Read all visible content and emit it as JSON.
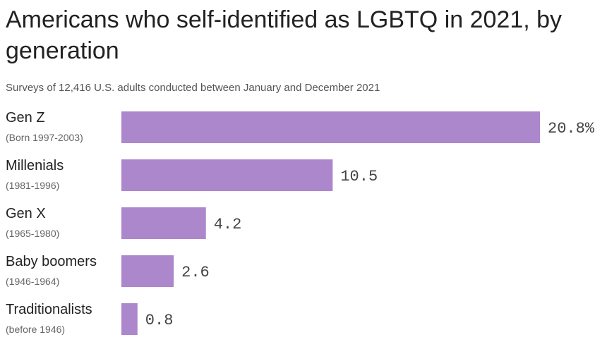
{
  "title": "Americans who self-identified as LGBTQ in 2021, by generation",
  "subtitle": "Surveys of 12,416 U.S. adults conducted between January and December 2021",
  "colors": {
    "bar": "#ad87cc"
  },
  "chart_data": {
    "type": "bar",
    "orientation": "horizontal",
    "categories": [
      "Gen Z",
      "Millenials",
      "Gen X",
      "Baby boomers",
      "Traditionalists"
    ],
    "category_subtitles": [
      "(Born 1997-2003)",
      "(1981-1996)",
      "(1965-1980)",
      "(1946-1964)",
      "(before 1946)"
    ],
    "values": [
      20.8,
      10.5,
      4.2,
      2.6,
      0.8
    ],
    "value_labels": [
      "20.8%",
      "10.5",
      "4.2",
      "2.6",
      "0.8"
    ],
    "title": "Americans who self-identified as LGBTQ in 2021, by generation",
    "xlabel": "",
    "ylabel": "",
    "xlim": [
      0,
      20.8
    ],
    "grid": false,
    "legend": "none"
  }
}
